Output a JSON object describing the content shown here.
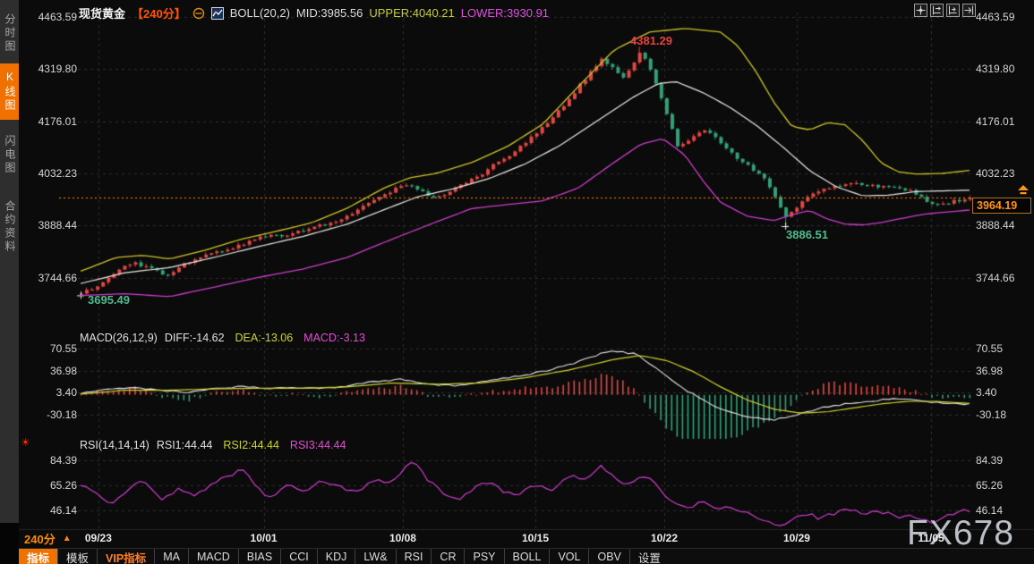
{
  "header": {
    "symbol": "现货黄金",
    "period": "【240分】",
    "boll_label": "BOLL(20,2)",
    "mid": "MID:3985.56",
    "upper": "UPPER:4040.21",
    "lower": "LOWER:3930.91"
  },
  "sidebar": {
    "tabs": [
      {
        "label": "分时图",
        "active": false
      },
      {
        "label": "K线图",
        "active": true
      },
      {
        "label": "闪电图",
        "active": false
      },
      {
        "label": "合约资料",
        "active": false
      }
    ]
  },
  "top_right_icons": [
    "pan-icon",
    "scale-y-icon",
    "scale-x-icon",
    "go-latest-icon"
  ],
  "macd_label": {
    "name": "MACD(26,12,9)",
    "diff": "DIFF:-14.62",
    "dea": "DEA:-13.06",
    "macd": "MACD:-3.13"
  },
  "rsi_label": {
    "name": "RSI(14,14,14)",
    "rsi1": "RSI1:44.44",
    "rsi2": "RSI2:44.44",
    "rsi3": "RSI3:44.44"
  },
  "annotations": {
    "high": "4381.29",
    "low": "3886.51",
    "start_low": "3695.49",
    "current": "3964.19"
  },
  "bottom": {
    "period": "240分",
    "period_arrow": "▲",
    "tabs": [
      {
        "label": "指标",
        "style": "active"
      },
      {
        "label": "模板",
        "style": ""
      },
      {
        "label": "VIP指标",
        "style": "vip"
      },
      {
        "label": "MA",
        "style": ""
      },
      {
        "label": "MACD",
        "style": ""
      },
      {
        "label": "BIAS",
        "style": ""
      },
      {
        "label": "CCI",
        "style": ""
      },
      {
        "label": "KDJ",
        "style": ""
      },
      {
        "label": "LW&",
        "style": ""
      },
      {
        "label": "RSI",
        "style": ""
      },
      {
        "label": "CR",
        "style": ""
      },
      {
        "label": "PSY",
        "style": ""
      },
      {
        "label": "BOLL",
        "style": ""
      },
      {
        "label": "VOL",
        "style": ""
      },
      {
        "label": "OBV",
        "style": ""
      },
      {
        "label": "设置",
        "style": ""
      }
    ]
  },
  "watermark": {
    "text": "FX678"
  },
  "colors": {
    "up": "#e04843",
    "down": "#33a077",
    "band_upper": "#cdc428",
    "band_mid": "#e9e9e9",
    "band_lower": "#cc3ecc",
    "diff_line": "#e9e9e9",
    "dea_line": "#cdd32f",
    "rsi_line": "#d03ed0",
    "grid": "#2e2e2e",
    "accent": "#ff8a00",
    "active_tab": "#f07000"
  },
  "chart_data": {
    "type": "candlestick+indicators",
    "title": "现货黄金 240分 K线图 BOLL(20,2) MACD(26,12,9) RSI(14,14,14)",
    "bars": 165,
    "current_price": 3964.19,
    "dates": [
      {
        "label": "09/23",
        "t": 0.02
      },
      {
        "label": "10/01",
        "t": 0.206
      },
      {
        "label": "10/08",
        "t": 0.3625
      },
      {
        "label": "10/15",
        "t": 0.5116
      },
      {
        "label": "10/22",
        "t": 0.6566
      },
      {
        "label": "10/29",
        "t": 0.8056
      },
      {
        "label": "11/05",
        "t": 0.9567
      }
    ],
    "main": {
      "ticks": [
        4463.59,
        4319.8,
        4176.01,
        4032.23,
        3888.44,
        3744.66
      ],
      "high_point": {
        "t": 0.628,
        "price": 4381.29
      },
      "low_point": {
        "t": 0.792,
        "price": 3886.51
      },
      "first_low": {
        "t": 0.0,
        "price": 3695.49
      },
      "close_anchors": [
        [
          0,
          3700
        ],
        [
          0.02,
          3726
        ],
        [
          0.045,
          3768
        ],
        [
          0.06,
          3786
        ],
        [
          0.075,
          3772
        ],
        [
          0.095,
          3752
        ],
        [
          0.115,
          3780
        ],
        [
          0.14,
          3808
        ],
        [
          0.17,
          3826
        ],
        [
          0.2,
          3856
        ],
        [
          0.23,
          3862
        ],
        [
          0.26,
          3882
        ],
        [
          0.285,
          3900
        ],
        [
          0.305,
          3922
        ],
        [
          0.33,
          3956
        ],
        [
          0.35,
          3986
        ],
        [
          0.37,
          4002
        ],
        [
          0.385,
          3978
        ],
        [
          0.4,
          3962
        ],
        [
          0.42,
          3992
        ],
        [
          0.445,
          4022
        ],
        [
          0.465,
          4056
        ],
        [
          0.49,
          4096
        ],
        [
          0.51,
          4140
        ],
        [
          0.53,
          4186
        ],
        [
          0.55,
          4240
        ],
        [
          0.57,
          4302
        ],
        [
          0.585,
          4346
        ],
        [
          0.598,
          4322
        ],
        [
          0.61,
          4296
        ],
        [
          0.62,
          4332
        ],
        [
          0.628,
          4368
        ],
        [
          0.638,
          4330
        ],
        [
          0.652,
          4242
        ],
        [
          0.663,
          4162
        ],
        [
          0.672,
          4102
        ],
        [
          0.686,
          4126
        ],
        [
          0.7,
          4150
        ],
        [
          0.716,
          4126
        ],
        [
          0.73,
          4092
        ],
        [
          0.75,
          4052
        ],
        [
          0.77,
          4012
        ],
        [
          0.783,
          3956
        ],
        [
          0.792,
          3908
        ],
        [
          0.802,
          3932
        ],
        [
          0.816,
          3966
        ],
        [
          0.83,
          3986
        ],
        [
          0.85,
          3996
        ],
        [
          0.87,
          4002
        ],
        [
          0.89,
          3996
        ],
        [
          0.91,
          3992
        ],
        [
          0.93,
          3986
        ],
        [
          0.95,
          3956
        ],
        [
          0.97,
          3946
        ],
        [
          0.985,
          3958
        ],
        [
          1,
          3964.19
        ]
      ],
      "upper_anchors": [
        [
          0,
          3762
        ],
        [
          0.04,
          3800
        ],
        [
          0.07,
          3806
        ],
        [
          0.1,
          3796
        ],
        [
          0.14,
          3820
        ],
        [
          0.18,
          3850
        ],
        [
          0.22,
          3872
        ],
        [
          0.26,
          3896
        ],
        [
          0.3,
          3936
        ],
        [
          0.34,
          3990
        ],
        [
          0.37,
          4020
        ],
        [
          0.4,
          4032
        ],
        [
          0.44,
          4062
        ],
        [
          0.48,
          4106
        ],
        [
          0.52,
          4168
        ],
        [
          0.56,
          4272
        ],
        [
          0.6,
          4372
        ],
        [
          0.64,
          4422
        ],
        [
          0.68,
          4432
        ],
        [
          0.72,
          4422
        ],
        [
          0.74,
          4382
        ],
        [
          0.76,
          4312
        ],
        [
          0.78,
          4228
        ],
        [
          0.8,
          4162
        ],
        [
          0.82,
          4152
        ],
        [
          0.84,
          4172
        ],
        [
          0.86,
          4166
        ],
        [
          0.88,
          4122
        ],
        [
          0.9,
          4062
        ],
        [
          0.92,
          4036
        ],
        [
          0.94,
          4030
        ],
        [
          0.97,
          4032
        ],
        [
          1,
          4040.21
        ]
      ],
      "mid_anchors": [
        [
          0,
          3728
        ],
        [
          0.05,
          3758
        ],
        [
          0.1,
          3772
        ],
        [
          0.15,
          3800
        ],
        [
          0.2,
          3830
        ],
        [
          0.25,
          3858
        ],
        [
          0.3,
          3892
        ],
        [
          0.35,
          3940
        ],
        [
          0.38,
          3968
        ],
        [
          0.42,
          3990
        ],
        [
          0.46,
          4018
        ],
        [
          0.5,
          4058
        ],
        [
          0.54,
          4110
        ],
        [
          0.58,
          4175
        ],
        [
          0.62,
          4240
        ],
        [
          0.65,
          4280
        ],
        [
          0.67,
          4285
        ],
        [
          0.7,
          4255
        ],
        [
          0.73,
          4215
        ],
        [
          0.76,
          4165
        ],
        [
          0.79,
          4105
        ],
        [
          0.82,
          4040
        ],
        [
          0.85,
          3995
        ],
        [
          0.88,
          3970
        ],
        [
          0.91,
          3972
        ],
        [
          0.94,
          3982
        ],
        [
          1,
          3985.56
        ]
      ],
      "lower_anchors": [
        [
          0,
          3695
        ],
        [
          0.05,
          3700
        ],
        [
          0.1,
          3692
        ],
        [
          0.15,
          3718
        ],
        [
          0.2,
          3745
        ],
        [
          0.25,
          3768
        ],
        [
          0.3,
          3800
        ],
        [
          0.35,
          3850
        ],
        [
          0.4,
          3898
        ],
        [
          0.44,
          3935
        ],
        [
          0.48,
          3946
        ],
        [
          0.52,
          3956
        ],
        [
          0.56,
          3992
        ],
        [
          0.6,
          4062
        ],
        [
          0.63,
          4112
        ],
        [
          0.655,
          4128
        ],
        [
          0.68,
          4082
        ],
        [
          0.7,
          4012
        ],
        [
          0.72,
          3952
        ],
        [
          0.75,
          3914
        ],
        [
          0.78,
          3902
        ],
        [
          0.8,
          3918
        ],
        [
          0.82,
          3930
        ],
        [
          0.84,
          3906
        ],
        [
          0.86,
          3892
        ],
        [
          0.88,
          3890
        ],
        [
          0.9,
          3896
        ],
        [
          0.92,
          3906
        ],
        [
          0.95,
          3920
        ],
        [
          1,
          3930.91
        ]
      ]
    },
    "macd": {
      "ticks": [
        70.55,
        36.98,
        3.4,
        -30.18
      ],
      "diff_anchors": [
        [
          0,
          2
        ],
        [
          0.03,
          8
        ],
        [
          0.06,
          12
        ],
        [
          0.09,
          6
        ],
        [
          0.12,
          4
        ],
        [
          0.15,
          10
        ],
        [
          0.18,
          13
        ],
        [
          0.21,
          9
        ],
        [
          0.24,
          11
        ],
        [
          0.27,
          9
        ],
        [
          0.3,
          14
        ],
        [
          0.33,
          20
        ],
        [
          0.36,
          24
        ],
        [
          0.39,
          16
        ],
        [
          0.42,
          14
        ],
        [
          0.45,
          20
        ],
        [
          0.48,
          26
        ],
        [
          0.51,
          33
        ],
        [
          0.54,
          42
        ],
        [
          0.57,
          55
        ],
        [
          0.595,
          68
        ],
        [
          0.61,
          65
        ],
        [
          0.625,
          62
        ],
        [
          0.64,
          48
        ],
        [
          0.66,
          28
        ],
        [
          0.68,
          8
        ],
        [
          0.7,
          -8
        ],
        [
          0.72,
          -22
        ],
        [
          0.74,
          -30
        ],
        [
          0.76,
          -35
        ],
        [
          0.78,
          -38
        ],
        [
          0.8,
          -33
        ],
        [
          0.82,
          -25
        ],
        [
          0.84,
          -18
        ],
        [
          0.86,
          -14
        ],
        [
          0.88,
          -12
        ],
        [
          0.9,
          -8
        ],
        [
          0.92,
          -6
        ],
        [
          0.94,
          -8
        ],
        [
          0.96,
          -12
        ],
        [
          1,
          -14.62
        ]
      ],
      "dea_anchors": [
        [
          0,
          1
        ],
        [
          0.05,
          7
        ],
        [
          0.1,
          7
        ],
        [
          0.15,
          9
        ],
        [
          0.2,
          10
        ],
        [
          0.25,
          10
        ],
        [
          0.3,
          12
        ],
        [
          0.35,
          18
        ],
        [
          0.4,
          16
        ],
        [
          0.45,
          18
        ],
        [
          0.5,
          26
        ],
        [
          0.55,
          38
        ],
        [
          0.6,
          54
        ],
        [
          0.63,
          60
        ],
        [
          0.66,
          52
        ],
        [
          0.69,
          35
        ],
        [
          0.72,
          12
        ],
        [
          0.75,
          -8
        ],
        [
          0.78,
          -22
        ],
        [
          0.81,
          -28
        ],
        [
          0.84,
          -26
        ],
        [
          0.87,
          -20
        ],
        [
          0.9,
          -14
        ],
        [
          0.93,
          -10
        ],
        [
          0.96,
          -10
        ],
        [
          1,
          -13.06
        ]
      ],
      "hist_gain": 2.2
    },
    "rsi": {
      "ticks": [
        84.39,
        65.26,
        46.14
      ],
      "rsi_anchors": [
        [
          0,
          66
        ],
        [
          0.02,
          58
        ],
        [
          0.035,
          50
        ],
        [
          0.05,
          60
        ],
        [
          0.07,
          69
        ],
        [
          0.09,
          55
        ],
        [
          0.11,
          62
        ],
        [
          0.13,
          57
        ],
        [
          0.15,
          68
        ],
        [
          0.17,
          73
        ],
        [
          0.18,
          79
        ],
        [
          0.2,
          62
        ],
        [
          0.215,
          55
        ],
        [
          0.23,
          66
        ],
        [
          0.25,
          60
        ],
        [
          0.27,
          70
        ],
        [
          0.29,
          64
        ],
        [
          0.31,
          59
        ],
        [
          0.33,
          70
        ],
        [
          0.35,
          66
        ],
        [
          0.37,
          83
        ],
        [
          0.375,
          84
        ],
        [
          0.39,
          70
        ],
        [
          0.41,
          58
        ],
        [
          0.425,
          53
        ],
        [
          0.44,
          62
        ],
        [
          0.46,
          68
        ],
        [
          0.475,
          60
        ],
        [
          0.49,
          57
        ],
        [
          0.51,
          66
        ],
        [
          0.53,
          62
        ],
        [
          0.55,
          73
        ],
        [
          0.57,
          70
        ],
        [
          0.585,
          80
        ],
        [
          0.6,
          72
        ],
        [
          0.615,
          65
        ],
        [
          0.63,
          73
        ],
        [
          0.645,
          68
        ],
        [
          0.66,
          55
        ],
        [
          0.68,
          48
        ],
        [
          0.7,
          52
        ],
        [
          0.715,
          46
        ],
        [
          0.73,
          48
        ],
        [
          0.75,
          44
        ],
        [
          0.77,
          38
        ],
        [
          0.79,
          33
        ],
        [
          0.8,
          40
        ],
        [
          0.82,
          44
        ],
        [
          0.83,
          40
        ],
        [
          0.85,
          44
        ],
        [
          0.865,
          47
        ],
        [
          0.88,
          42
        ],
        [
          0.9,
          45
        ],
        [
          0.92,
          40
        ],
        [
          0.93,
          43
        ],
        [
          0.95,
          38
        ],
        [
          0.96,
          35
        ],
        [
          0.975,
          42
        ],
        [
          0.99,
          46
        ],
        [
          1,
          44.44
        ]
      ]
    }
  }
}
